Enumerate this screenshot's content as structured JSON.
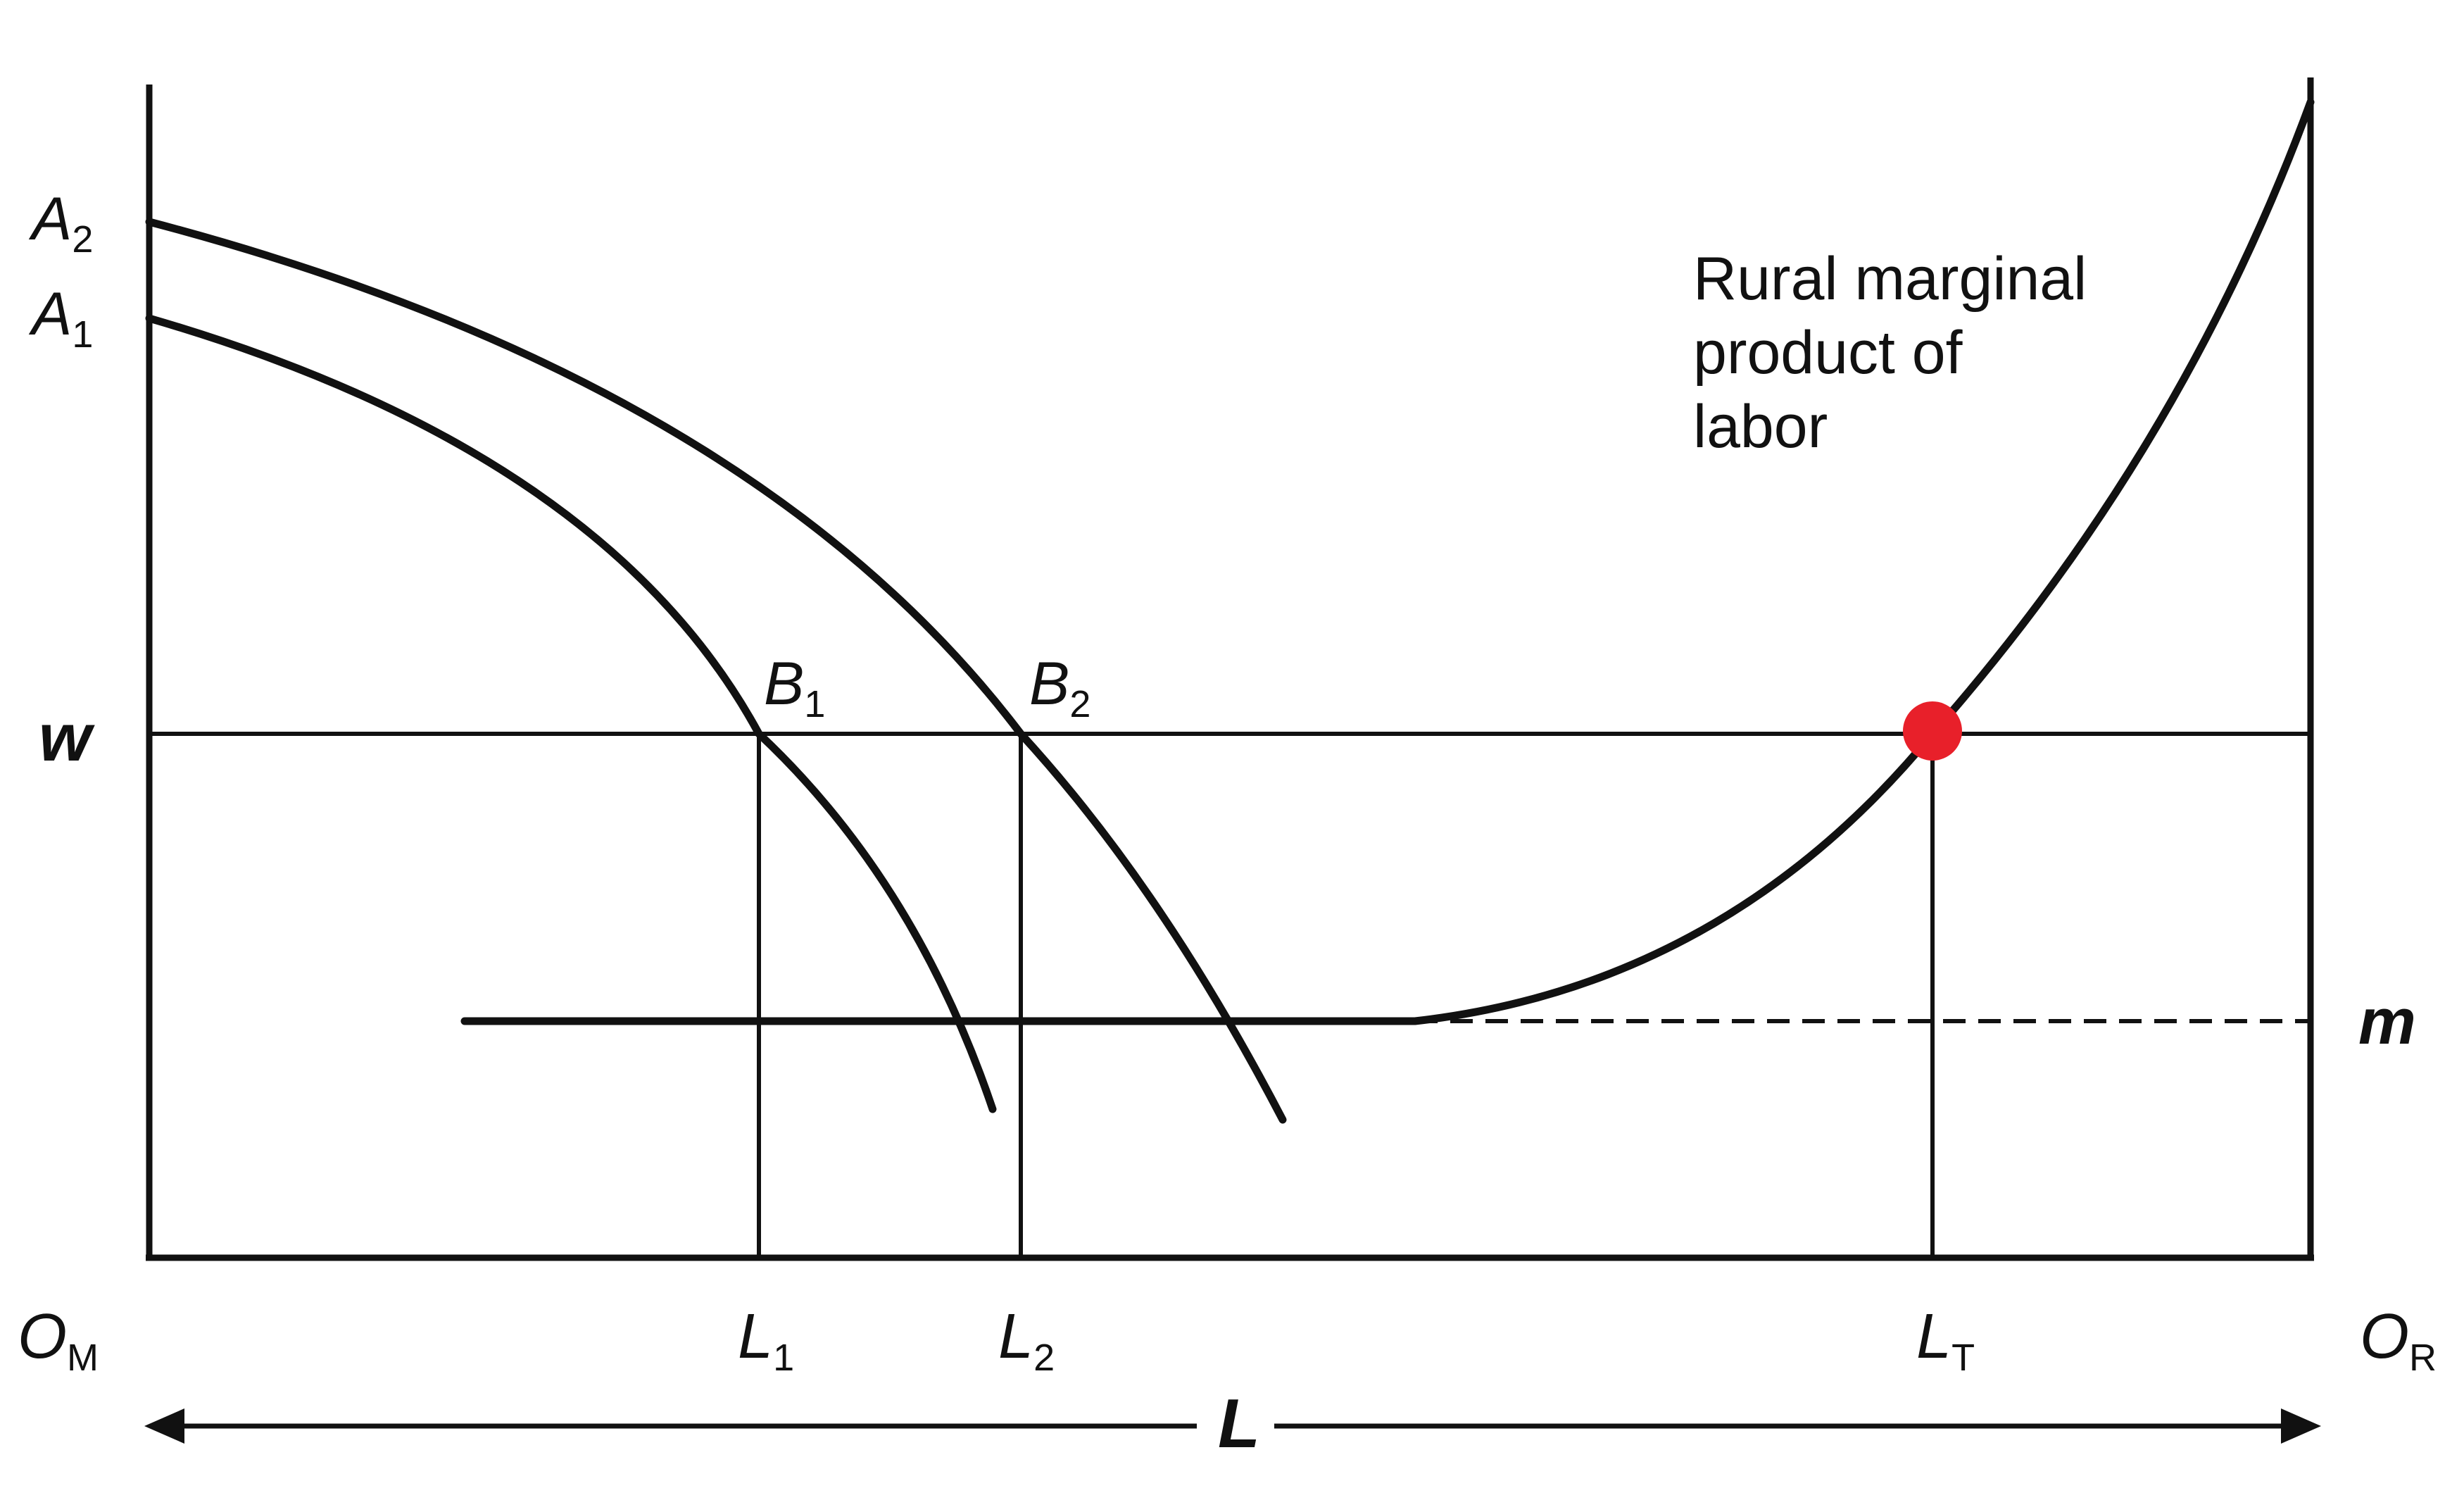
{
  "figure": {
    "labels": {
      "A2": {
        "main": "A",
        "sub": "2"
      },
      "A1": {
        "main": "A",
        "sub": "1"
      },
      "w": {
        "main": "w"
      },
      "B1": {
        "main": "B",
        "sub": "1"
      },
      "B2": {
        "main": "B",
        "sub": "2"
      },
      "m": {
        "main": "m"
      },
      "OM": {
        "main": "O",
        "sub": "M"
      },
      "L1": {
        "main": "L",
        "sub": "1"
      },
      "L2": {
        "main": "L",
        "sub": "2"
      },
      "LT": {
        "main": "L",
        "sub": "T"
      },
      "OR": {
        "main": "O",
        "sub": "R"
      },
      "L": {
        "main": "L"
      }
    },
    "annotation": [
      "Rural marginal",
      "product of",
      "labor"
    ],
    "colors": {
      "ink": "#111111",
      "equilibrium_marker": "#e8202a",
      "background": "#ffffff"
    }
  }
}
